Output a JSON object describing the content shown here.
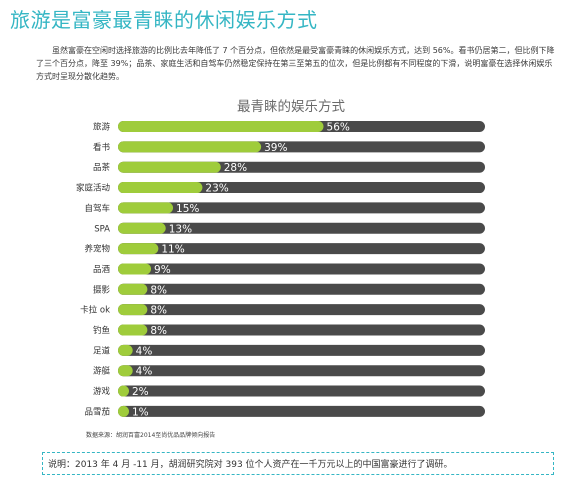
{
  "page": {
    "title": "旅游是富豪最青睐的休闲娱乐方式",
    "intro": "虽然富豪在空闲时选择旅游的比例比去年降低了 7 个百分点，但依然是最受富豪青睐的休闲娱乐方式，达到 56%。看书仍居第二，但比例下降了三个百分点，降至 39%；品茶、家庭生活和自驾车仍然稳定保持在第三至第五的位次，但是比例都有不同程度的下滑，说明富豪在选择休闲娱乐方式时呈现分散化趋势。",
    "source": "数据来源：胡润百富2014至尚优品品牌倾向报告",
    "note": "说明：2013 年 4 月 -11 月，胡润研究院对 393 位个人资产在一千万元以上的中国富豪进行了调研。"
  },
  "colors": {
    "accent": "#35b6c4",
    "bar_fill": "#9fcc3b",
    "bar_track": "#4a4a4a",
    "value_label": "#ffffff"
  },
  "chart_data": {
    "type": "bar",
    "orientation": "horizontal",
    "title": "最青睐的娱乐方式",
    "categories": [
      "旅游",
      "看书",
      "品茶",
      "家庭活动",
      "自驾车",
      "SPA",
      "养宠物",
      "品酒",
      "摄影",
      "卡拉 ok",
      "钓鱼",
      "足道",
      "游艇",
      "游戏",
      "品雪茄"
    ],
    "values": [
      56,
      39,
      28,
      23,
      15,
      13,
      11,
      9,
      8,
      8,
      8,
      4,
      4,
      2,
      1
    ],
    "value_labels": [
      "56%",
      "39%",
      "28%",
      "23%",
      "15%",
      "13%",
      "11%",
      "9%",
      "8%",
      "8%",
      "8%",
      "4%",
      "4%",
      "2%",
      "1%"
    ],
    "xlim": [
      0,
      100
    ],
    "grid": false,
    "legend": "none"
  }
}
